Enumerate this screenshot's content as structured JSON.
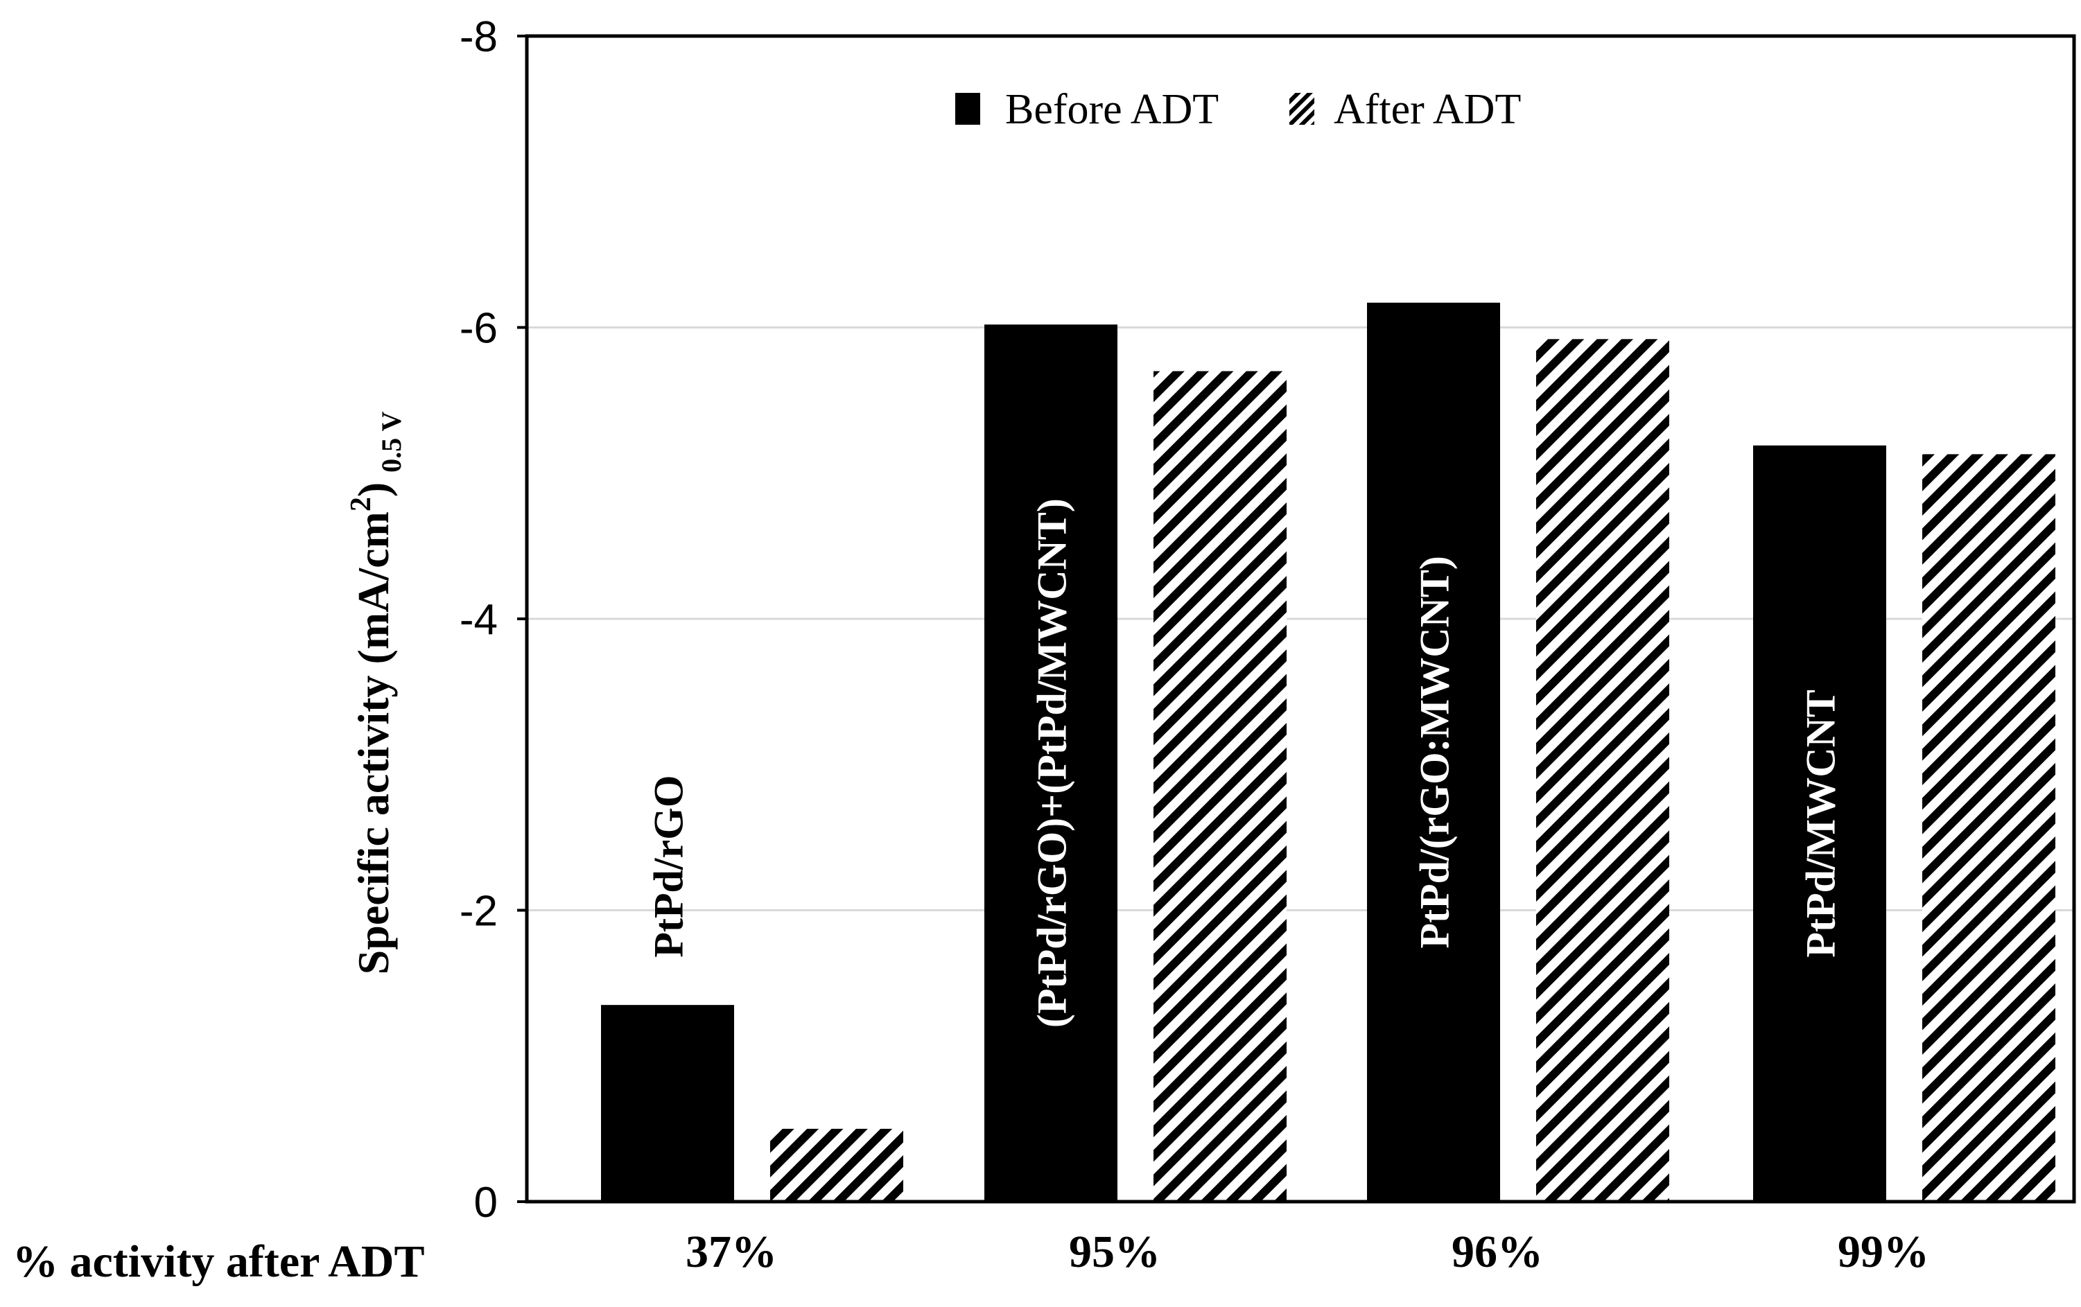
{
  "chart_data": {
    "type": "bar",
    "title": "",
    "xlabel": "",
    "ylabel_main": "Specific activity (mA/cm",
    "ylabel_sup": "2",
    "ylabel_close": ")",
    "ylabel_sub": "0.5 V",
    "ylim": [
      -8,
      0
    ],
    "y_ticks": [
      -8,
      -6,
      -4,
      -2,
      0
    ],
    "y_tick_labels": [
      "-8",
      "-6",
      "-4",
      "-2",
      "0"
    ],
    "grid": true,
    "categories": [
      "PtPd/rGO",
      "(PtPd/rGO)+(PtPd/MWCNT)",
      "PtPd/(rGO:MWCNT)",
      "PtPd/MWCNT"
    ],
    "series": [
      {
        "name": "Before ADT",
        "style": "solid",
        "values": [
          -1.35,
          -6.02,
          -6.17,
          -5.19
        ]
      },
      {
        "name": "After ADT",
        "style": "hatched",
        "values": [
          -0.5,
          -5.7,
          -5.92,
          -5.13
        ]
      }
    ],
    "legend_position": "top-center",
    "retention_row_label": "% activity after ADT",
    "retention_values": [
      "37%",
      "95%",
      "96%",
      "99%"
    ],
    "colors": {
      "bar": "#000000",
      "label_inside": "#ffffff",
      "label_outside": "#000000",
      "grid": "#d9d9d9",
      "axis": "#000000"
    }
  }
}
